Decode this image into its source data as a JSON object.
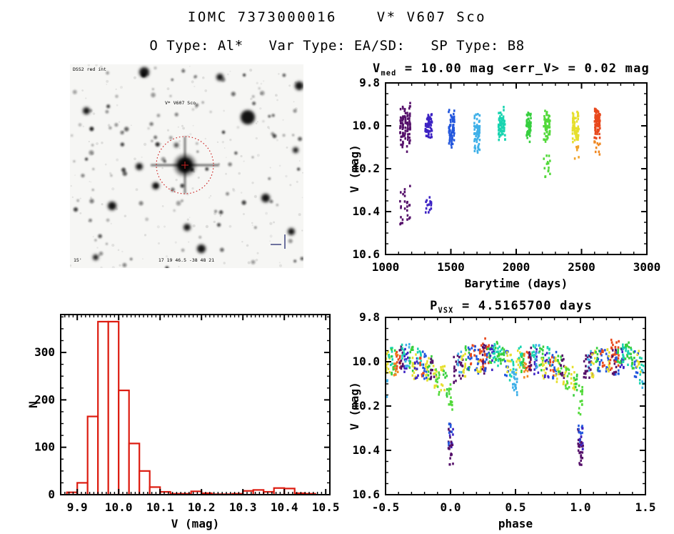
{
  "header": {
    "title": "IOMC 7373000016    V* V607 Sco",
    "subtitle": "O Type: Al*   Var Type: EA/SD:   SP Type: B8"
  },
  "finding_chart": {
    "label_topleft": "DSS2 red int",
    "target_label": "V* V607 Sco",
    "label_bottom": "17 19 46.5 -38 48 21",
    "label_bottomleft": "15'",
    "background": "#f6f6f4",
    "marker_color": "#cc2222",
    "annotation_color": "#2b3a9e",
    "circle_center": [
      161,
      141
    ],
    "circle_radius": 40,
    "bright_stars": [
      [
        249,
        74,
        10
      ],
      [
        104,
        11,
        7
      ],
      [
        274,
        187,
        6
      ],
      [
        59,
        198,
        6
      ],
      [
        184,
        258,
        6
      ],
      [
        97,
        143,
        5
      ],
      [
        164,
        228,
        5
      ],
      [
        310,
        234,
        5
      ],
      [
        149,
        113,
        3
      ],
      [
        120,
        170,
        5
      ],
      [
        23,
        65,
        5
      ],
      [
        321,
        30,
        6
      ],
      [
        36,
        270,
        4
      ],
      [
        210,
        18,
        5
      ],
      [
        316,
        120,
        4
      ],
      [
        230,
        300,
        5
      ]
    ]
  },
  "chart_data": [
    {
      "id": "lightcurve",
      "type": "scatter",
      "title": {
        "pre": "V",
        "sub": "med",
        "post": " = 10.00 mag <err_V> = 0.02 mag"
      },
      "xlabel": "Barytime (days)",
      "ylabel": "V (mag)",
      "x_left": 1000,
      "x_right": 3000,
      "y_top": 9.8,
      "y_bottom": 10.6,
      "xticks": [
        1000,
        1500,
        2000,
        2500,
        3000
      ],
      "xtick_labels": [
        "1000",
        "1500",
        "2000",
        "2500",
        "3000"
      ],
      "yticks": [
        9.8,
        10.0,
        10.2,
        10.4,
        10.6
      ],
      "ytick_labels": [
        "9.8",
        "10.0",
        "10.2",
        "10.4",
        "10.6"
      ],
      "minor_x": 100,
      "minor_y": 0.05,
      "grid": false,
      "legend": "none",
      "clusters": [
        {
          "t": 1150,
          "w": 35,
          "c": "#55106a",
          "segs": [
            [
              9.88,
              10.13,
              110,
              1
            ],
            [
              10.28,
              10.47,
              26,
              0
            ]
          ]
        },
        {
          "t": 1330,
          "w": 22,
          "c": "#3c22c3",
          "segs": [
            [
              9.91,
              10.07,
              60,
              1
            ],
            [
              10.3,
              10.42,
              16,
              0
            ]
          ]
        },
        {
          "t": 1505,
          "w": 18,
          "c": "#2256dd",
          "segs": [
            [
              9.91,
              10.11,
              70,
              1
            ]
          ]
        },
        {
          "t": 1700,
          "w": 18,
          "c": "#3fb0e8",
          "segs": [
            [
              9.92,
              10.15,
              70,
              1
            ]
          ]
        },
        {
          "t": 1890,
          "w": 22,
          "c": "#19d4b0",
          "segs": [
            [
              9.91,
              10.08,
              75,
              1
            ]
          ]
        },
        {
          "t": 2095,
          "w": 14,
          "c": "#36cf3e",
          "segs": [
            [
              9.92,
              10.08,
              55,
              1
            ]
          ]
        },
        {
          "t": 2235,
          "w": 20,
          "c": "#52d93a",
          "segs": [
            [
              9.91,
              10.09,
              55,
              1
            ],
            [
              10.13,
              10.24,
              14,
              0
            ]
          ]
        },
        {
          "t": 2455,
          "w": 20,
          "c": "#e6df2d",
          "segs": [
            [
              9.92,
              10.09,
              65,
              1
            ],
            [
              10.09,
              10.16,
              8,
              0,
              "#f0a32a"
            ]
          ]
        },
        {
          "t": 2620,
          "w": 18,
          "c": "#e8481c",
          "segs": [
            [
              9.9,
              10.07,
              80,
              1
            ],
            [
              10.07,
              10.15,
              10,
              0,
              "#ef8822"
            ]
          ]
        }
      ]
    },
    {
      "id": "histogram",
      "type": "bar",
      "color": "#dd1c10",
      "xlabel": "V (mag)",
      "ylabel": "N",
      "x_left": 9.86,
      "x_right": 10.51,
      "y_top": 380,
      "y_bottom": 0,
      "xticks": [
        9.9,
        10.0,
        10.1,
        10.2,
        10.3,
        10.4,
        10.5
      ],
      "xtick_labels": [
        "9.9",
        "10.0",
        "10.1",
        "10.2",
        "10.3",
        "10.4",
        "10.5"
      ],
      "yticks": [
        0,
        100,
        200,
        300
      ],
      "ytick_labels": [
        "0",
        "100",
        "200",
        "300"
      ],
      "minor_x": 0.01,
      "minor_y": 25,
      "grid": false,
      "legend": "none",
      "bins": {
        "start": 9.875,
        "width": 0.025,
        "counts": [
          5,
          25,
          165,
          365,
          365,
          220,
          108,
          50,
          16,
          6,
          2,
          2,
          7,
          3,
          1,
          1,
          2,
          8,
          10,
          6,
          14,
          13,
          3,
          2
        ]
      }
    },
    {
      "id": "phase",
      "type": "scatter",
      "title": {
        "pre": "P",
        "sub": "VSX",
        "post": " = 4.5165700 days"
      },
      "xlabel": "phase",
      "ylabel": "V (mag)",
      "x_left": -0.5,
      "x_right": 1.5,
      "y_top": 9.8,
      "y_bottom": 10.6,
      "xticks": [
        -0.5,
        0.0,
        0.5,
        1.0,
        1.5
      ],
      "xtick_labels": [
        "-0.5",
        "0.0",
        "0.5",
        "1.0",
        "1.5"
      ],
      "yticks": [
        9.8,
        10.0,
        10.2,
        10.4,
        10.6
      ],
      "ytick_labels": [
        "9.8",
        "10.0",
        "10.2",
        "10.4",
        "10.6"
      ],
      "minor_x": 0.1,
      "minor_y": 0.05,
      "grid": false,
      "legend": "none",
      "repeat_offset": 1,
      "strips": [
        [
          -0.5,
          "#3fb0e8",
          10.02,
          10.16,
          12
        ],
        [
          -0.48,
          "#e6df2d",
          9.95,
          10.06,
          12
        ],
        [
          -0.46,
          "#19d4b0",
          9.93,
          10.02,
          10
        ],
        [
          -0.44,
          "#36cf3e",
          9.94,
          10.06,
          12
        ],
        [
          -0.42,
          "#ef8822",
          9.96,
          10.08,
          10
        ],
        [
          -0.4,
          "#e8481c",
          9.94,
          10.04,
          12
        ],
        [
          -0.38,
          "#55106a",
          9.93,
          10.05,
          14
        ],
        [
          -0.36,
          "#19d4b0",
          9.92,
          10.0,
          10
        ],
        [
          -0.34,
          "#3c22c3",
          9.94,
          10.06,
          12
        ],
        [
          -0.33,
          "#3fb0e8",
          9.92,
          10.03,
          10
        ],
        [
          -0.3,
          "#36cf3e",
          9.93,
          10.05,
          12
        ],
        [
          -0.28,
          "#e6df2d",
          9.96,
          10.08,
          12
        ],
        [
          -0.26,
          "#3c22c3",
          9.95,
          10.08,
          10
        ],
        [
          -0.24,
          "#19d4b0",
          9.93,
          10.02,
          10
        ],
        [
          -0.22,
          "#e8481c",
          9.97,
          10.07,
          10
        ],
        [
          -0.2,
          "#2256dd",
          9.95,
          10.08,
          12
        ],
        [
          -0.18,
          "#e6df2d",
          9.98,
          10.1,
          12
        ],
        [
          -0.16,
          "#36cf3e",
          9.97,
          10.08,
          10
        ],
        [
          -0.14,
          "#55106a",
          9.97,
          10.08,
          12
        ],
        [
          -0.12,
          "#e6df2d",
          10.0,
          10.12,
          10
        ],
        [
          -0.1,
          "#52d93a",
          10.02,
          10.15,
          12
        ],
        [
          -0.06,
          "#e6df2d",
          10.02,
          10.13,
          10
        ],
        [
          -0.04,
          "#36cf3e",
          10.04,
          10.16,
          10
        ],
        [
          -0.005,
          "#55106a",
          10.28,
          10.45,
          14
        ],
        [
          0.0,
          "#52d93a",
          10.1,
          10.24,
          14
        ],
        [
          0.0,
          "#2256dd",
          10.28,
          10.38,
          10
        ],
        [
          0.005,
          "#3c22c3",
          10.3,
          10.41,
          8
        ],
        [
          0.005,
          "#55106a",
          10.36,
          10.47,
          12
        ],
        [
          0.04,
          "#55106a",
          9.97,
          10.1,
          12
        ],
        [
          0.07,
          "#3fb0e8",
          9.95,
          10.06,
          10
        ],
        [
          0.08,
          "#55106a",
          9.96,
          10.08,
          10
        ],
        [
          0.1,
          "#e6df2d",
          9.95,
          10.08,
          12
        ],
        [
          0.13,
          "#36cf3e",
          9.93,
          10.04,
          10
        ],
        [
          0.15,
          "#2256dd",
          9.92,
          10.05,
          12
        ],
        [
          0.17,
          "#e8481c",
          9.92,
          10.03,
          10
        ],
        [
          0.2,
          "#2256dd",
          9.93,
          10.06,
          12
        ],
        [
          0.22,
          "#e6df2d",
          9.94,
          10.05,
          10
        ],
        [
          0.24,
          "#e8481c",
          9.9,
          10.04,
          14
        ],
        [
          0.26,
          "#55106a",
          9.92,
          10.06,
          14
        ],
        [
          0.28,
          "#e8481c",
          9.89,
          10.02,
          12
        ],
        [
          0.28,
          "#2256dd",
          9.95,
          10.07,
          8
        ],
        [
          0.3,
          "#36cf3e",
          9.92,
          10.01,
          10
        ],
        [
          0.32,
          "#3c22c3",
          9.91,
          10.04,
          12
        ],
        [
          0.34,
          "#19d4b0",
          9.92,
          10.01,
          12
        ],
        [
          0.36,
          "#36cf3e",
          9.91,
          10.0,
          10
        ],
        [
          0.38,
          "#19d4b0",
          9.93,
          10.02,
          10
        ],
        [
          0.4,
          "#36cf3e",
          9.93,
          10.03,
          12
        ],
        [
          0.43,
          "#2256dd",
          9.94,
          10.07,
          10
        ],
        [
          0.45,
          "#e6df2d",
          9.95,
          10.05,
          10
        ],
        [
          0.47,
          "#19d4b0",
          9.98,
          10.1,
          10
        ],
        [
          0.49,
          "#3fb0e8",
          10.0,
          10.12,
          10
        ]
      ]
    }
  ]
}
